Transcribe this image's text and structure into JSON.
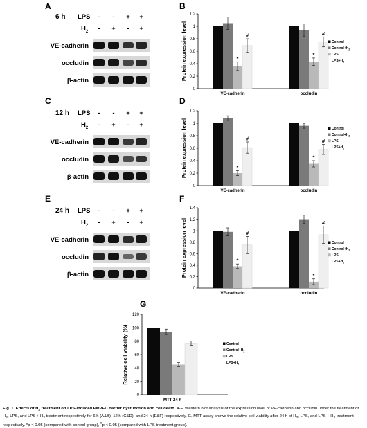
{
  "panels": {
    "A": "A",
    "B": "B",
    "C": "C",
    "D": "D",
    "E": "E",
    "F": "F",
    "G": "G"
  },
  "blots": [
    {
      "time": "6 h",
      "lps_label": "LPS",
      "h2_label": "H",
      "h2_sub": "2",
      "lps_signs": [
        "-",
        "-",
        "+",
        "+"
      ],
      "h2_signs": [
        "-",
        "+",
        "-",
        "+"
      ],
      "rows": [
        "VE-cadherin",
        "occludin",
        "β-actin"
      ],
      "intensity": [
        [
          1.0,
          1.0,
          0.75,
          0.85
        ],
        [
          1.0,
          0.95,
          0.6,
          0.8
        ],
        [
          1.0,
          1.0,
          1.0,
          1.0
        ]
      ]
    },
    {
      "time": "12 h",
      "lps_label": "LPS",
      "h2_label": "H",
      "h2_sub": "2",
      "lps_signs": [
        "-",
        "-",
        "+",
        "+"
      ],
      "h2_signs": [
        "-",
        "+",
        "-",
        "+"
      ],
      "rows": [
        "VE-cadherin",
        "occludin",
        "β-actin"
      ],
      "intensity": [
        [
          1.0,
          1.0,
          0.7,
          0.85
        ],
        [
          1.0,
          0.95,
          0.55,
          0.75
        ],
        [
          1.0,
          1.0,
          1.0,
          1.0
        ]
      ]
    },
    {
      "time": "24 h",
      "lps_label": "LPS",
      "h2_label": "H",
      "h2_sub": "2",
      "lps_signs": [
        "-",
        "-",
        "+",
        "+"
      ],
      "h2_signs": [
        "-",
        "+",
        "-",
        "+"
      ],
      "rows": [
        "VE-cadherin",
        "occludin",
        "β-actin"
      ],
      "intensity": [
        [
          1.0,
          1.0,
          0.8,
          0.95
        ],
        [
          0.85,
          1.0,
          0.35,
          0.7
        ],
        [
          1.0,
          1.0,
          1.0,
          1.0
        ]
      ]
    }
  ],
  "chart_data": [
    {
      "type": "bar",
      "ylabel": "Protein expression level",
      "ylim": [
        0,
        1.2
      ],
      "yticks": [
        "0",
        "0.2",
        "0.4",
        "0.6",
        "0.8",
        "1",
        "1.2"
      ],
      "categories": [
        "VE-cadherin",
        "occludin"
      ],
      "series": [
        {
          "name": "Control",
          "values": [
            1.0,
            1.0
          ],
          "errors": [
            0.0,
            0.0
          ]
        },
        {
          "name": "Control+H2",
          "values": [
            1.05,
            0.94
          ],
          "errors": [
            0.1,
            0.1
          ]
        },
        {
          "name": "LPS",
          "values": [
            0.36,
            0.43
          ],
          "errors": [
            0.07,
            0.06
          ]
        },
        {
          "name": "LPS+H2",
          "values": [
            0.69,
            0.75
          ],
          "errors": [
            0.11,
            0.08
          ]
        }
      ],
      "marks": [
        {
          "cat": 0,
          "series": 2,
          "text": "*"
        },
        {
          "cat": 0,
          "series": 3,
          "text": "#"
        },
        {
          "cat": 1,
          "series": 2,
          "text": "*"
        },
        {
          "cat": 1,
          "series": 3,
          "text": "#"
        }
      ],
      "legend": [
        "Control",
        "Control+H",
        "LPS",
        "LPS+H"
      ],
      "legend_subs": [
        "",
        "2",
        "",
        "2"
      ],
      "legend_position": "right"
    },
    {
      "type": "bar",
      "ylabel": "Protein expression level",
      "ylim": [
        0,
        1.2
      ],
      "yticks": [
        "0",
        "0.2",
        "0.4",
        "0.6",
        "0.8",
        "1",
        "1.2"
      ],
      "categories": [
        "VE-cadherin",
        "occludin"
      ],
      "series": [
        {
          "name": "Control",
          "values": [
            1.0,
            1.0
          ],
          "errors": [
            0.0,
            0.0
          ]
        },
        {
          "name": "Control+H2",
          "values": [
            1.08,
            0.96
          ],
          "errors": [
            0.04,
            0.04
          ]
        },
        {
          "name": "LPS",
          "values": [
            0.2,
            0.35
          ],
          "errors": [
            0.04,
            0.05
          ]
        },
        {
          "name": "LPS+H2",
          "values": [
            0.61,
            0.58
          ],
          "errors": [
            0.09,
            0.08
          ]
        }
      ],
      "marks": [
        {
          "cat": 0,
          "series": 2,
          "text": "*"
        },
        {
          "cat": 0,
          "series": 3,
          "text": "#"
        },
        {
          "cat": 1,
          "series": 2,
          "text": "*"
        },
        {
          "cat": 1,
          "series": 3,
          "text": "#"
        }
      ],
      "legend": [
        "Control",
        "Control+H",
        "LPS",
        "LPS+H"
      ],
      "legend_subs": [
        "",
        "2",
        "",
        "2"
      ],
      "legend_position": "right"
    },
    {
      "type": "bar",
      "ylabel": "Protein expression level",
      "ylim": [
        0,
        1.4
      ],
      "yticks": [
        "0",
        "0.2",
        "0.4",
        "0.6",
        "0.8",
        "1",
        "1.2",
        "1.4"
      ],
      "categories": [
        "VE-cadherin",
        "occludin"
      ],
      "series": [
        {
          "name": "Control",
          "values": [
            1.0,
            1.0
          ],
          "errors": [
            0.0,
            0.0
          ]
        },
        {
          "name": "Control+H2",
          "values": [
            0.98,
            1.2
          ],
          "errors": [
            0.07,
            0.07
          ]
        },
        {
          "name": "LPS",
          "values": [
            0.38,
            0.11
          ],
          "errors": [
            0.04,
            0.05
          ]
        },
        {
          "name": "LPS+H2",
          "values": [
            0.75,
            0.93
          ],
          "errors": [
            0.15,
            0.15
          ]
        }
      ],
      "marks": [
        {
          "cat": 0,
          "series": 2,
          "text": "*"
        },
        {
          "cat": 0,
          "series": 3,
          "text": "#"
        },
        {
          "cat": 1,
          "series": 2,
          "text": "*"
        },
        {
          "cat": 1,
          "series": 3,
          "text": "#"
        }
      ],
      "legend": [
        "Control",
        "Control+H",
        "LPS",
        "LPS+H"
      ],
      "legend_subs": [
        "",
        "2",
        "",
        "2"
      ],
      "legend_position": "right"
    },
    {
      "type": "bar",
      "ylabel": "Relative cell viability (%)",
      "ylim": [
        0,
        120
      ],
      "yticks": [
        "0",
        "20",
        "40",
        "60",
        "80",
        "100",
        "120"
      ],
      "categories": [
        "MTT 24 h"
      ],
      "series": [
        {
          "name": "Control",
          "values": [
            100
          ],
          "errors": [
            0
          ]
        },
        {
          "name": "Control+H2",
          "values": [
            94
          ],
          "errors": [
            4
          ]
        },
        {
          "name": "LPS",
          "values": [
            45
          ],
          "errors": [
            3
          ]
        },
        {
          "name": "LPS+H2",
          "values": [
            77
          ],
          "errors": [
            3
          ]
        }
      ],
      "marks": [],
      "legend": [
        "Control",
        "Control+H",
        "LPS",
        "LPS+H"
      ],
      "legend_subs": [
        "",
        "2",
        "",
        "2"
      ],
      "legend_position": "right"
    }
  ],
  "colors": {
    "series": [
      "#0a0a0a",
      "#7a7a7a",
      "#b9b9b9",
      "#efefef"
    ],
    "band": "#111111",
    "strip": "#d8d8d8"
  },
  "caption": {
    "title_a": "Fig. 1. Effects of H",
    "title_sub": "2",
    "title_b": " treatment on LPS-induced PMVEC barrier dysfunction and cell death.",
    "body_a": " A-F. Western blot analysis of the expression level of VE-cadherin and occludin under the treatment of H",
    "body_sub1": "2",
    "body_b": ", LPS, and LPS + H",
    "body_sub2": "2",
    "body_c": " treatment respectively for 6 h (A&B), 12 h (C&D), and 24 h (E&F) respectively. G. MTT assay shows the relative cell viability after 24 h of H",
    "body_sub3": "2",
    "body_d": ", LPS, and LPS + H",
    "body_sub4": "2",
    "body_e": " treatment respectively. *p < 0.05 (compared with control group), ",
    "body_hash": "#",
    "body_f": "p < 0.05 (compared with LPS treatment group)."
  }
}
